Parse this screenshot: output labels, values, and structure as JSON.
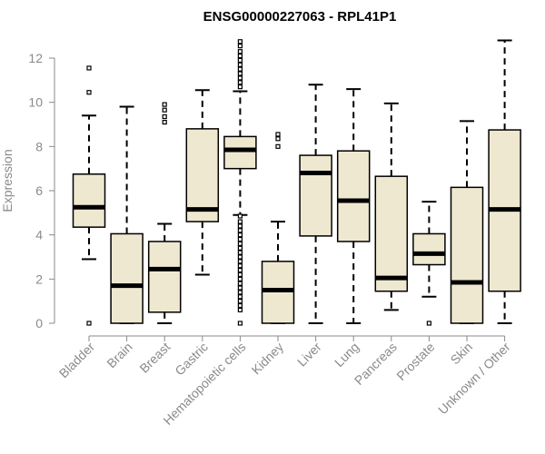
{
  "chart_data": {
    "type": "boxplot",
    "title": "ENSG00000227063 - RPL41P1",
    "ylabel": "Expression",
    "xlabel": "",
    "ylim": [
      0,
      12.8
    ],
    "yticks": [
      0,
      2,
      4,
      6,
      8,
      10,
      12
    ],
    "grid": false,
    "legend": "none",
    "colors": {
      "box_fill": "#efe8d0",
      "box_stroke": "#000000",
      "median": "#000000",
      "axis_text": "#8a8a8a"
    },
    "categories": [
      "Bladder",
      "Brain",
      "Breast",
      "Gastric",
      "Hematopoietic cells",
      "Kidney",
      "Liver",
      "Lung",
      "Pancreas",
      "Prostate",
      "Skin",
      "Unknown / Other"
    ],
    "boxes": [
      {
        "category": "Bladder",
        "q1": 4.35,
        "median": 5.25,
        "q3": 6.75,
        "whisker_low": 2.9,
        "whisker_high": 9.4,
        "outliers": [
          11.55,
          10.45,
          0
        ]
      },
      {
        "category": "Brain",
        "q1": 0,
        "median": 1.7,
        "q3": 4.05,
        "whisker_low": 0,
        "whisker_high": 9.8,
        "outliers": []
      },
      {
        "category": "Breast",
        "q1": 0.5,
        "median": 2.45,
        "q3": 3.7,
        "whisker_low": 0,
        "whisker_high": 4.5,
        "outliers": [
          9.9,
          9.65,
          9.35,
          9.1
        ]
      },
      {
        "category": "Gastric",
        "q1": 4.6,
        "median": 5.15,
        "q3": 8.8,
        "whisker_low": 2.2,
        "whisker_high": 10.55,
        "outliers": []
      },
      {
        "category": "Hematopoietic cells",
        "q1": 7.0,
        "median": 7.85,
        "q3": 8.45,
        "whisker_low": 4.9,
        "whisker_high": 10.5,
        "outliers": [
          12.75,
          12.55,
          12.3,
          12.1,
          11.9,
          11.7,
          11.5,
          11.3,
          11.1,
          10.9,
          10.7,
          4.85,
          4.6,
          4.4,
          4.2,
          4.0,
          3.8,
          3.6,
          3.4,
          3.2,
          3.0,
          2.8,
          2.6,
          2.4,
          2.2,
          2.0,
          1.8,
          1.6,
          1.4,
          1.2,
          1.0,
          0.8,
          0.6,
          0
        ]
      },
      {
        "category": "Kidney",
        "q1": 0,
        "median": 1.5,
        "q3": 2.8,
        "whisker_low": 0,
        "whisker_high": 4.6,
        "outliers": [
          8.55,
          8.35,
          8.0
        ]
      },
      {
        "category": "Liver",
        "q1": 3.95,
        "median": 6.8,
        "q3": 7.6,
        "whisker_low": 0,
        "whisker_high": 10.8,
        "outliers": []
      },
      {
        "category": "Lung",
        "q1": 3.7,
        "median": 5.55,
        "q3": 7.8,
        "whisker_low": 0,
        "whisker_high": 10.6,
        "outliers": []
      },
      {
        "category": "Pancreas",
        "q1": 1.45,
        "median": 2.05,
        "q3": 6.65,
        "whisker_low": 0.6,
        "whisker_high": 9.95,
        "outliers": []
      },
      {
        "category": "Prostate",
        "q1": 2.65,
        "median": 3.15,
        "q3": 4.05,
        "whisker_low": 1.2,
        "whisker_high": 5.5,
        "outliers": [
          0
        ]
      },
      {
        "category": "Skin",
        "q1": 0,
        "median": 1.85,
        "q3": 6.15,
        "whisker_low": 0,
        "whisker_high": 9.15,
        "outliers": []
      },
      {
        "category": "Unknown / Other",
        "q1": 1.45,
        "median": 5.15,
        "q3": 8.75,
        "whisker_low": 0,
        "whisker_high": 12.8,
        "outliers": []
      }
    ]
  }
}
